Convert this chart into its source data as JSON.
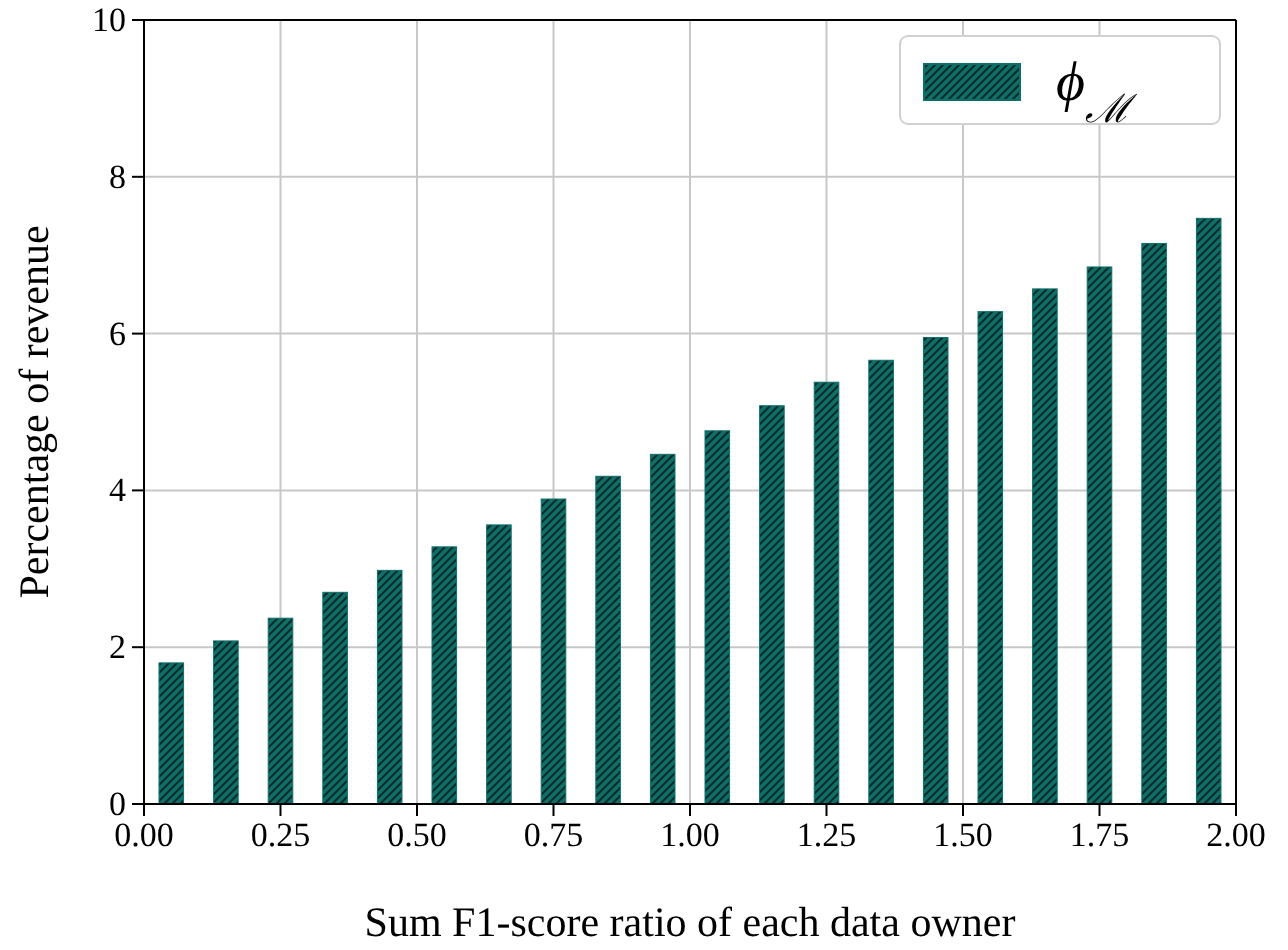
{
  "chart_data": {
    "type": "bar",
    "xlabel": "Sum F1-score ratio of each data owner",
    "ylabel": "Percentage of revenue",
    "x": [
      0.05,
      0.15,
      0.25,
      0.35,
      0.45,
      0.55,
      0.65,
      0.75,
      0.85,
      0.95,
      1.05,
      1.15,
      1.25,
      1.35,
      1.45,
      1.55,
      1.65,
      1.75,
      1.85,
      1.95
    ],
    "series": [
      {
        "name": "ϕ$_{ℳ}$",
        "color": "#0e6f69",
        "values": [
          1.8,
          2.08,
          2.37,
          2.7,
          2.98,
          3.28,
          3.56,
          3.89,
          4.18,
          4.46,
          4.76,
          5.08,
          5.38,
          5.66,
          5.95,
          6.28,
          6.57,
          6.85,
          7.15,
          7.47
        ]
      }
    ],
    "xlim": [
      0,
      2
    ],
    "ylim": [
      0,
      10
    ],
    "xticks": [
      {
        "value": 0,
        "label": "0.00"
      },
      {
        "value": 0.25,
        "label": "0.25"
      },
      {
        "value": 0.5,
        "label": "0.50"
      },
      {
        "value": 0.75,
        "label": "0.75"
      },
      {
        "value": 1,
        "label": "1.00"
      },
      {
        "value": 1.25,
        "label": "1.25"
      },
      {
        "value": 1.5,
        "label": "1.50"
      },
      {
        "value": 1.75,
        "label": "1.75"
      },
      {
        "value": 2,
        "label": "2.00"
      }
    ],
    "yticks": [
      0,
      2,
      4,
      6,
      8,
      10
    ],
    "grid": true,
    "legend": "top right"
  }
}
